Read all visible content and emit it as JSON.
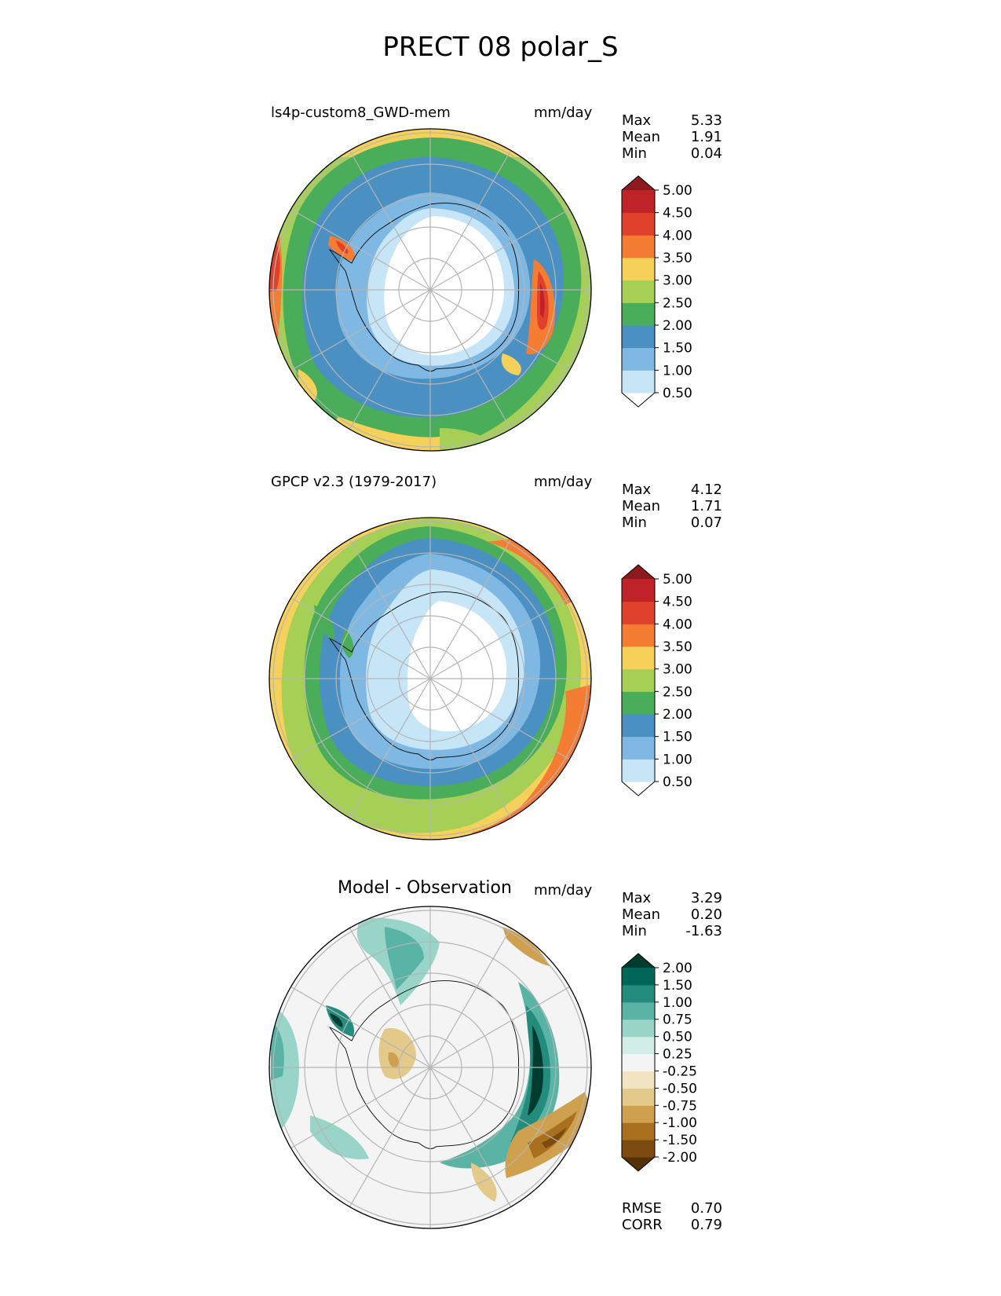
{
  "title": "PRECT 08 polar_S",
  "panels": [
    {
      "id": "test",
      "title": "ls4p-custom8_GWD-mem",
      "units": "mm/day",
      "stats": [
        {
          "label": "Max",
          "value": "5.33"
        },
        {
          "label": "Mean",
          "value": "1.91"
        },
        {
          "label": "Min",
          "value": "0.04"
        }
      ],
      "colorbar": {
        "levels": [
          "0.50",
          "1.00",
          "1.50",
          "2.00",
          "2.50",
          "3.00",
          "3.50",
          "4.00",
          "4.50",
          "5.00"
        ],
        "colors": [
          "#ffffff",
          "#c6e5f7",
          "#7fb9e3",
          "#4a90c2",
          "#4aad5a",
          "#a6cf55",
          "#f6d15a",
          "#f57d33",
          "#e0412b",
          "#c0222a",
          "#8b1a1e"
        ]
      }
    },
    {
      "id": "reference",
      "title": "GPCP v2.3 (1979-2017)",
      "units": "mm/day",
      "stats": [
        {
          "label": "Max",
          "value": "4.12"
        },
        {
          "label": "Mean",
          "value": "1.71"
        },
        {
          "label": "Min",
          "value": "0.07"
        }
      ],
      "colorbar": {
        "levels": [
          "0.50",
          "1.00",
          "1.50",
          "2.00",
          "2.50",
          "3.00",
          "3.50",
          "4.00",
          "4.50",
          "5.00"
        ],
        "colors": [
          "#ffffff",
          "#c6e5f7",
          "#7fb9e3",
          "#4a90c2",
          "#4aad5a",
          "#a6cf55",
          "#f6d15a",
          "#f57d33",
          "#e0412b",
          "#c0222a",
          "#8b1a1e"
        ]
      }
    },
    {
      "id": "diff",
      "title": "Model - Observation",
      "units": "mm/day",
      "stats": [
        {
          "label": "Max",
          "value": "3.29"
        },
        {
          "label": "Mean",
          "value": "0.20"
        },
        {
          "label": "Min",
          "value": "-1.63"
        }
      ],
      "extra_stats": [
        {
          "label": "RMSE",
          "value": "0.70"
        },
        {
          "label": "CORR",
          "value": "0.79"
        }
      ],
      "colorbar": {
        "levels": [
          "-2.00",
          "-1.50",
          "-1.00",
          "-0.75",
          "-0.50",
          "-0.25",
          "0.25",
          "0.50",
          "0.75",
          "1.00",
          "1.50",
          "2.00"
        ],
        "colors": [
          "#543005",
          "#7d4a0f",
          "#a8701f",
          "#cfa14f",
          "#e3c98a",
          "#f3e5c2",
          "#f4f4f4",
          "#d2ece6",
          "#99d4c8",
          "#5ab4a5",
          "#248c7d",
          "#006658",
          "#003c30"
        ]
      }
    }
  ]
}
